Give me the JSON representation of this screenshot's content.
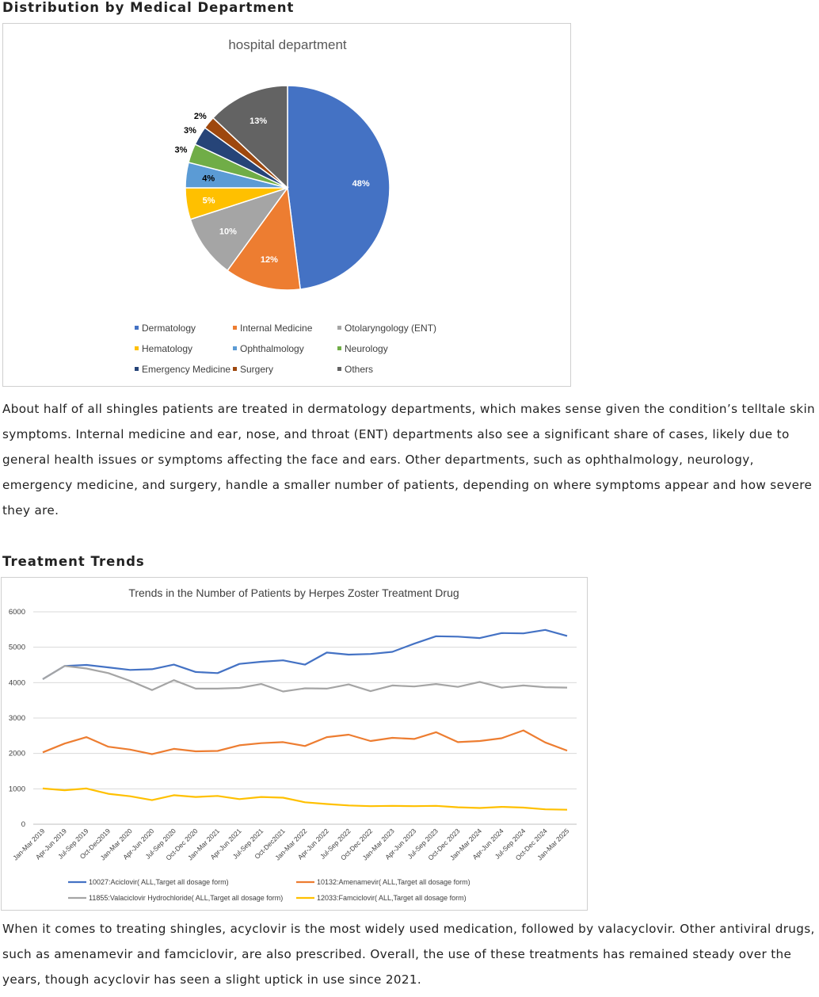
{
  "section1": {
    "heading": "Distribution by Medical Department",
    "paragraph": "About half of all shingles patients are treated in dermatology departments, which makes sense given the condition’s telltale skin symptoms. Internal medicine and ear, nose, and throat (ENT) departments also see a significant share of cases, likely due to general health issues or symptoms affecting the face and ears. Other departments, such as ophthalmology, neurology, emergency medicine, and surgery, handle a smaller number of patients, depending on where symptoms appear and how severe they are."
  },
  "section2": {
    "heading": "Treatment Trends",
    "paragraph": "When it comes to treating shingles, acyclovir is the most widely used medication, followed by valacyclovir. Other antiviral drugs, such as amenamevir and famciclovir, are also prescribed. Overall, the use of these treatments has remained steady over the years, though acyclovir has seen a slight uptick in use since 2021."
  },
  "chart_data": [
    {
      "type": "pie",
      "title": "hospital department",
      "slices": [
        {
          "label": "Dermatology",
          "value": 48,
          "display": "48%",
          "color": "#4472C4"
        },
        {
          "label": "Internal Medicine",
          "value": 12,
          "display": "12%",
          "color": "#ED7D31"
        },
        {
          "label": "Otolaryngology (ENT)",
          "value": 10,
          "display": "10%",
          "color": "#A5A5A5"
        },
        {
          "label": "Hematology",
          "value": 5,
          "display": "5%",
          "color": "#FFC000"
        },
        {
          "label": "Ophthalmology",
          "value": 4,
          "display": "4%",
          "color": "#5B9BD5"
        },
        {
          "label": "Neurology",
          "value": 3,
          "display": "3%",
          "color": "#70AD47"
        },
        {
          "label": "Emergency Medicine",
          "value": 3,
          "display": "3%",
          "color": "#264478"
        },
        {
          "label": "Surgery",
          "value": 2,
          "display": "2%",
          "color": "#9E480E"
        },
        {
          "label": "Others",
          "value": 13,
          "display": "13%",
          "color": "#636363"
        }
      ],
      "legend": "bottom"
    },
    {
      "type": "line",
      "title": "Trends in the Number of Patients by Herpes Zoster Treatment Drug",
      "ylim": [
        0,
        6000
      ],
      "yticks": [
        0,
        1000,
        2000,
        3000,
        4000,
        5000,
        6000
      ],
      "grid": true,
      "legend": "bottom",
      "x": [
        "Jan-Mar 2019",
        "Apr-Jun 2019",
        "Jul-Sep 2019",
        "Oct-Dec2019",
        "Jan-Mar 2020",
        "Apr-Jun 2020",
        "Jul-Sep 2020",
        "Oct-Dec 2020",
        "Jan-Mar 2021",
        "Apr-Jun 2021",
        "Jul-Sep 2021",
        "Oct-Dec2021",
        "Jan-Mar 2022",
        "Apr-Jun 2022",
        "Jul-Sep 2022",
        "Oct-Dec 2022",
        "Jan-Mar 2023",
        "Apr-Jun 2023",
        "Jul-Sep 2023",
        "Oct-Dec 2023",
        "Jan-Mar 2024",
        "Apr-Jun 2024",
        "Jul-Sep 2024",
        "Oct-Dec 2024",
        "Jan-Mar 2025"
      ],
      "series": [
        {
          "name": "10027:Aciclovir( ALL,Target all dosage form)",
          "color": "#4472C4",
          "values": [
            4100,
            4470,
            4500,
            4430,
            4360,
            4380,
            4510,
            4300,
            4270,
            4530,
            4590,
            4630,
            4510,
            4850,
            4790,
            4810,
            4870,
            5100,
            5310,
            5300,
            5260,
            5400,
            5390,
            5490,
            5320
          ]
        },
        {
          "name": "10132:Amenamevir( ALL,Target all dosage form)",
          "color": "#ED7D31",
          "values": [
            2030,
            2280,
            2460,
            2190,
            2110,
            1980,
            2130,
            2060,
            2070,
            2230,
            2290,
            2320,
            2210,
            2460,
            2530,
            2350,
            2440,
            2410,
            2600,
            2320,
            2350,
            2430,
            2650,
            2310,
            2080
          ]
        },
        {
          "name": "11855:Valaciclovir Hydrochloride( ALL,Target all dosage form)",
          "color": "#A5A5A5",
          "values": [
            4100,
            4470,
            4400,
            4270,
            4050,
            3790,
            4070,
            3830,
            3830,
            3850,
            3960,
            3750,
            3840,
            3830,
            3950,
            3760,
            3920,
            3890,
            3960,
            3880,
            4020,
            3860,
            3920,
            3870,
            3860
          ]
        },
        {
          "name": "12033:Famciclovir( ALL,Target all dosage form)",
          "color": "#FFC000",
          "values": [
            1010,
            960,
            1010,
            860,
            790,
            680,
            820,
            770,
            800,
            710,
            770,
            750,
            620,
            570,
            530,
            510,
            520,
            510,
            520,
            480,
            460,
            490,
            470,
            420,
            410
          ]
        }
      ]
    }
  ]
}
